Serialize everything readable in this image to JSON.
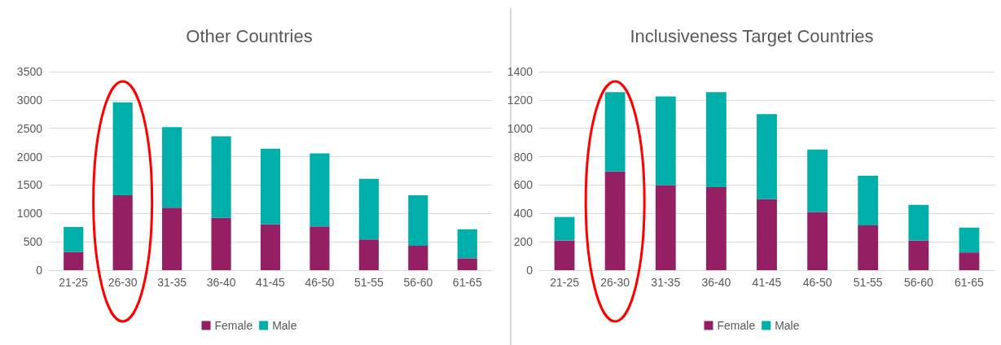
{
  "chart_data": [
    {
      "type": "bar",
      "title": "Other Countries",
      "stacked": true,
      "categories": [
        "21-25",
        "26-30",
        "31-35",
        "36-40",
        "41-45",
        "46-50",
        "51-55",
        "56-60",
        "61-65"
      ],
      "series": [
        {
          "name": "Female",
          "color": "#951f63",
          "values": [
            320,
            1320,
            1100,
            920,
            810,
            770,
            540,
            430,
            210
          ]
        },
        {
          "name": "Male",
          "color": "#00afa9",
          "values": [
            440,
            1640,
            1420,
            1440,
            1330,
            1290,
            1070,
            890,
            510
          ]
        }
      ],
      "ylim": [
        0,
        3500
      ],
      "yticks": [
        0,
        500,
        1000,
        1500,
        2000,
        2500,
        3000,
        3500
      ],
      "grid": "y",
      "legend": "bottom"
    },
    {
      "type": "bar",
      "title": "Inclusiveness Target Countries",
      "stacked": true,
      "categories": [
        "21-25",
        "26-30",
        "31-35",
        "36-40",
        "41-45",
        "46-50",
        "51-55",
        "56-60",
        "61-65"
      ],
      "series": [
        {
          "name": "Female",
          "color": "#951f63",
          "values": [
            210,
            695,
            600,
            585,
            500,
            410,
            315,
            210,
            125
          ]
        },
        {
          "name": "Male",
          "color": "#00afa9",
          "values": [
            165,
            560,
            625,
            670,
            600,
            440,
            350,
            250,
            175
          ]
        }
      ],
      "ylim": [
        0,
        1400
      ],
      "yticks": [
        0,
        200,
        400,
        600,
        800,
        1000,
        1200,
        1400
      ],
      "grid": "y",
      "legend": "bottom"
    }
  ]
}
